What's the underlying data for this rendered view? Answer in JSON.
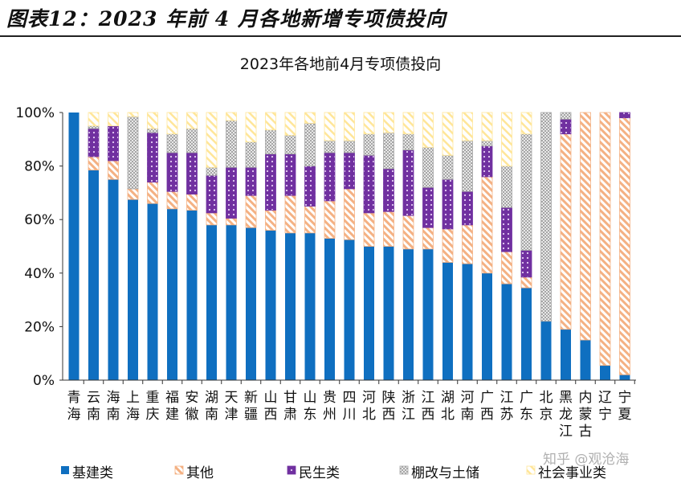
{
  "figure_title": "图表12：2023 年前 4 月各地新增专项债投向",
  "watermark": "知乎 @观沧海",
  "colors": {
    "基建类": "#0f6fc0",
    "其他": "#f4b183",
    "民生类": "#7030a0",
    "棚改与土储": "#bfbfbf",
    "社会事业类": "#ffe699"
  },
  "chart_data": {
    "type": "bar",
    "stacked": true,
    "title": "2023年各地前4月专项债投向",
    "ylim": [
      0,
      100
    ],
    "yticks": [
      "0%",
      "20%",
      "40%",
      "60%",
      "80%",
      "100%"
    ],
    "legend_position": "bottom",
    "grid": false,
    "categories": [
      "青海",
      "云南",
      "海南",
      "上海",
      "重庆",
      "福建",
      "安徽",
      "湖南",
      "天津",
      "新疆",
      "山西",
      "甘肃",
      "山东",
      "贵州",
      "四川",
      "河北",
      "陕西",
      "浙江",
      "江西",
      "湖北",
      "河南",
      "广西",
      "江苏",
      "广东",
      "北京",
      "黑龙江",
      "内蒙古",
      "辽宁",
      "宁夏"
    ],
    "series": [
      {
        "name": "基建类",
        "values": [
          100,
          78.5,
          75,
          67.5,
          66,
          64,
          63.5,
          58,
          58,
          57,
          56,
          55,
          55,
          53,
          52.5,
          50,
          50,
          49,
          49,
          44,
          43.5,
          40,
          36,
          34.5,
          22,
          19,
          15,
          5.5,
          2
        ]
      },
      {
        "name": "其他",
        "values": [
          0,
          5,
          7,
          4,
          8,
          6.5,
          6,
          4.5,
          2.5,
          12,
          7.5,
          14,
          10,
          14,
          19,
          12.5,
          13,
          12.5,
          8,
          12.5,
          14.5,
          36,
          12,
          4,
          0,
          73,
          85,
          94.5,
          96
        ]
      },
      {
        "name": "民生类",
        "values": [
          0,
          10.5,
          13,
          0,
          18.5,
          14.5,
          15.5,
          14,
          19,
          10.5,
          21,
          15.5,
          15,
          18,
          13.5,
          21.5,
          16,
          24.5,
          15,
          18.5,
          12.5,
          11.5,
          16.5,
          10,
          0,
          5.5,
          0,
          0,
          2
        ]
      },
      {
        "name": "棚改与土储",
        "values": [
          0,
          1,
          0,
          27,
          1.5,
          7,
          9,
          3,
          17.5,
          9.5,
          9,
          7,
          16,
          4.5,
          4.5,
          8,
          13.5,
          6,
          15,
          9,
          19,
          2,
          15.5,
          43.5,
          78,
          2.5,
          0,
          0,
          0
        ]
      },
      {
        "name": "社会事业类",
        "values": [
          0,
          5,
          5,
          1.5,
          6,
          8,
          6,
          20.5,
          3,
          11,
          6.5,
          8.5,
          4,
          10.5,
          10.5,
          8,
          7.5,
          8,
          13,
          16,
          10.5,
          10.5,
          20,
          8,
          0,
          0,
          0,
          0,
          0
        ]
      }
    ]
  }
}
